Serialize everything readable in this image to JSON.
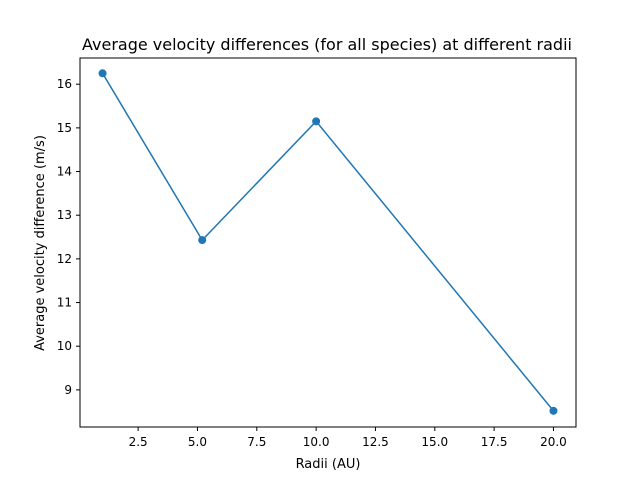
{
  "chart_data": {
    "type": "line",
    "title": "Average velocity differences (for all species) at different radii",
    "xlabel": "Radii (AU)",
    "ylabel": "Average velocity difference (m/s)",
    "xlim": [
      0.05,
      20.95
    ],
    "ylim": [
      8.15,
      16.6
    ],
    "x_ticks": [
      2.5,
      5.0,
      7.5,
      10.0,
      12.5,
      15.0,
      17.5,
      20.0
    ],
    "x_tick_labels": [
      "2.5",
      "5.0",
      "7.5",
      "10.0",
      "12.5",
      "15.0",
      "17.5",
      "20.0"
    ],
    "y_ticks": [
      9,
      10,
      11,
      12,
      13,
      14,
      15,
      16
    ],
    "y_tick_labels": [
      "9",
      "10",
      "11",
      "12",
      "13",
      "14",
      "15",
      "16"
    ],
    "grid": false,
    "series": [
      {
        "x": [
          1.0,
          5.2,
          10.0,
          20.0
        ],
        "y": [
          16.25,
          12.43,
          15.15,
          8.52
        ],
        "color": "#1f77b4",
        "marker": "circle"
      }
    ]
  }
}
